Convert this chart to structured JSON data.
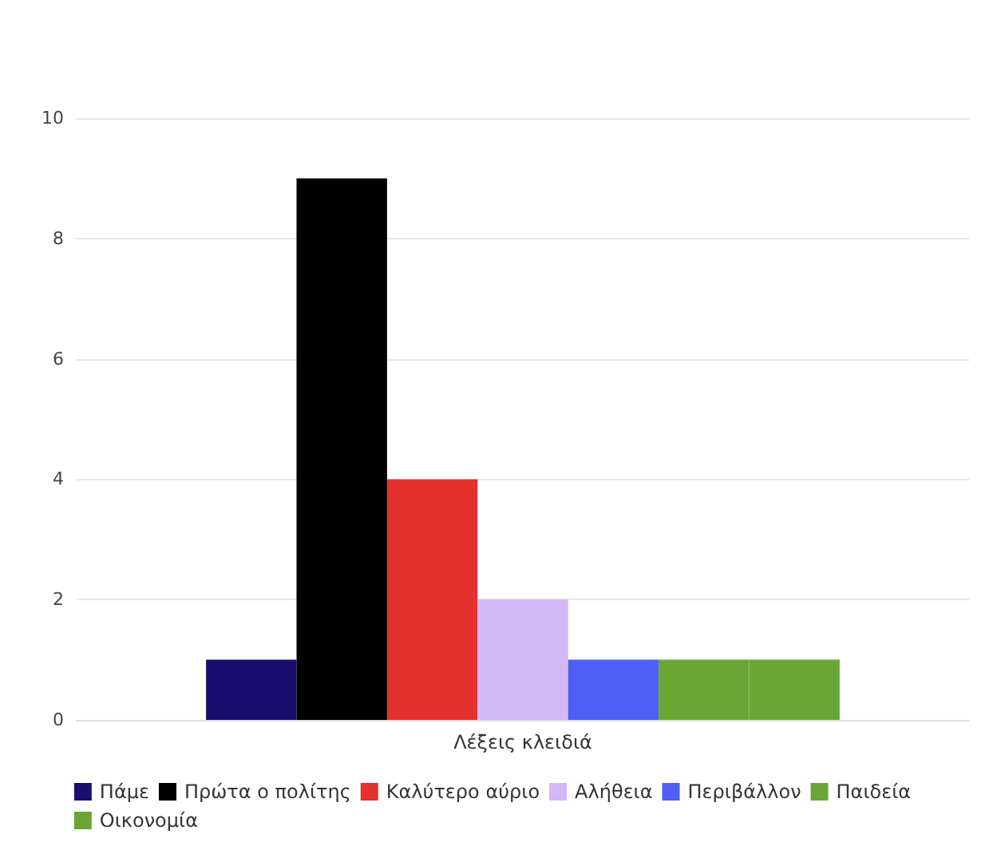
{
  "chart_data": {
    "type": "bar",
    "categories": [
      "Λέξεις κλειδιά"
    ],
    "series": [
      {
        "name": "Πάμε",
        "color": "#1a0f6e",
        "values": [
          1
        ]
      },
      {
        "name": "Πρώτα ο πολίτης",
        "color": "#000000",
        "values": [
          9
        ]
      },
      {
        "name": "Καλύτερο αύριο",
        "color": "#e53030",
        "values": [
          4
        ]
      },
      {
        "name": "Αλήθεια",
        "color": "#d2b8f5",
        "values": [
          2
        ]
      },
      {
        "name": "Περιβάλλον",
        "color": "#4f5ff5",
        "values": [
          1
        ]
      },
      {
        "name": "Παιδεία",
        "color": "#6aa636",
        "values": [
          1
        ]
      },
      {
        "name": "Οικονομία",
        "color": "#6aa636",
        "values": [
          1
        ]
      }
    ],
    "ylim": [
      0,
      10
    ],
    "yticks": [
      0,
      2,
      4,
      6,
      8,
      10
    ],
    "grid": "y",
    "legend": "bottom"
  }
}
